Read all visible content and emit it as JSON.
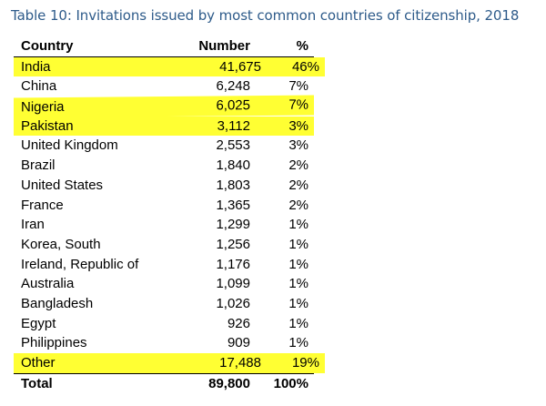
{
  "caption": "Table 10: Invitations issued by most common countries of citizenship, 2018",
  "headers": {
    "country": "Country",
    "number": "Number",
    "percent": "%"
  },
  "rows": [
    {
      "country": "India",
      "number": "41,675",
      "percent": "46%",
      "highlighted": true
    },
    {
      "country": "China",
      "number": "6,248",
      "percent": "7%",
      "highlighted": false
    },
    {
      "country": "Nigeria",
      "number": "6,025",
      "percent": "7%",
      "highlighted": true
    },
    {
      "country": "Pakistan",
      "number": "3,112",
      "percent": "3%",
      "highlighted": true
    },
    {
      "country": "United Kingdom",
      "number": "2,553",
      "percent": "3%",
      "highlighted": false
    },
    {
      "country": "Brazil",
      "number": "1,840",
      "percent": "2%",
      "highlighted": false
    },
    {
      "country": "United States",
      "number": "1,803",
      "percent": "2%",
      "highlighted": false
    },
    {
      "country": "France",
      "number": "1,365",
      "percent": "2%",
      "highlighted": false
    },
    {
      "country": "Iran",
      "number": "1,299",
      "percent": "1%",
      "highlighted": false
    },
    {
      "country": "Korea, South",
      "number": "1,256",
      "percent": "1%",
      "highlighted": false
    },
    {
      "country": "Ireland, Republic of",
      "number": "1,176",
      "percent": "1%",
      "highlighted": false
    },
    {
      "country": "Australia",
      "number": "1,099",
      "percent": "1%",
      "highlighted": false
    },
    {
      "country": "Bangladesh",
      "number": "1,026",
      "percent": "1%",
      "highlighted": false
    },
    {
      "country": "Egypt",
      "number": "926",
      "percent": "1%",
      "highlighted": false
    },
    {
      "country": "Philippines",
      "number": "909",
      "percent": "1%",
      "highlighted": false
    },
    {
      "country": "Other",
      "number": "17,488",
      "percent": "19%",
      "highlighted": true
    }
  ],
  "total": {
    "country": "Total",
    "number": "89,800",
    "percent": "100%"
  },
  "highlight_color": "#ffff33",
  "caption_color": "#2e5b8a"
}
